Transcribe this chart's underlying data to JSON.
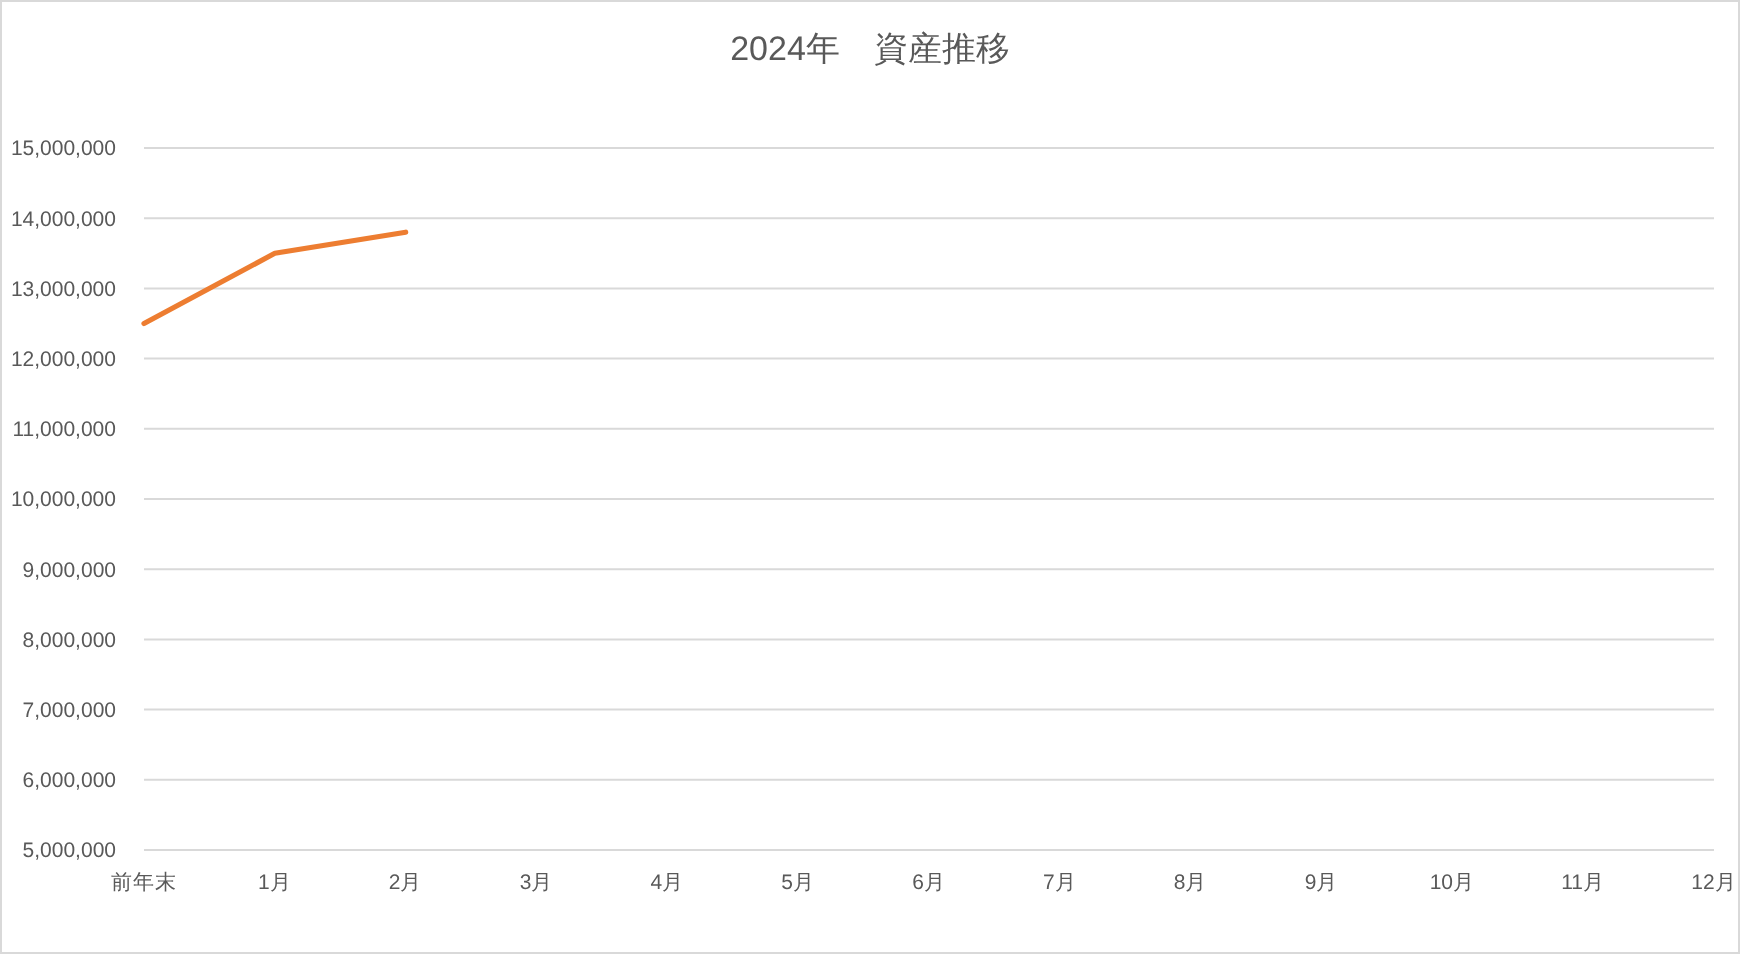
{
  "chart_data": {
    "type": "line",
    "title": "2024年　資産推移",
    "categories": [
      "前年末",
      "1月",
      "2月",
      "3月",
      "4月",
      "5月",
      "6月",
      "7月",
      "8月",
      "9月",
      "10月",
      "11月",
      "12月"
    ],
    "series": [
      {
        "color": "#ed7d31",
        "values": [
          12500000,
          13500000,
          13800000,
          null,
          null,
          null,
          null,
          null,
          null,
          null,
          null,
          null,
          null
        ]
      }
    ],
    "ylim": [
      5000000,
      15000000
    ],
    "yticks": [
      {
        "value": 5000000,
        "label": "5,000,000"
      },
      {
        "value": 6000000,
        "label": "6,000,000"
      },
      {
        "value": 7000000,
        "label": "7,000,000"
      },
      {
        "value": 8000000,
        "label": "8,000,000"
      },
      {
        "value": 9000000,
        "label": "9,000,000"
      },
      {
        "value": 10000000,
        "label": "10,000,000"
      },
      {
        "value": 11000000,
        "label": "11,000,000"
      },
      {
        "value": 12000000,
        "label": "12,000,000"
      },
      {
        "value": 13000000,
        "label": "13,000,000"
      },
      {
        "value": 14000000,
        "label": "14,000,000"
      },
      {
        "value": 15000000,
        "label": "15,000,000"
      }
    ],
    "grid": "y",
    "marker": "none",
    "line_style": "solid"
  }
}
